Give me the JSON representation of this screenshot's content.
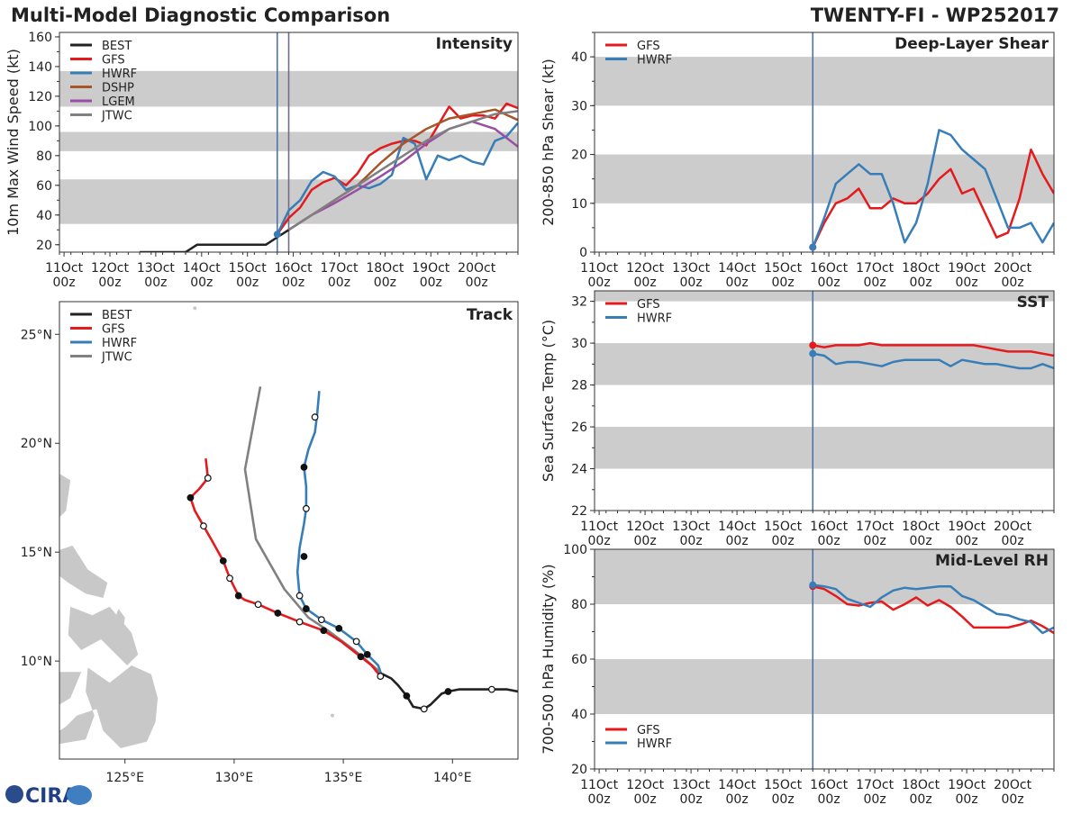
{
  "header": {
    "title_left": "Multi-Model Diagnostic Comparison",
    "title_right": "TWENTY-FI - WP252017"
  },
  "logo": {
    "text": "CIRA"
  },
  "colors": {
    "BEST": "#222222",
    "GFS": "#e41a1c",
    "HWRF": "#377eb8",
    "DSHP": "#a65628",
    "LGEM": "#984ea3",
    "JTWC": "#808080",
    "band": "#cccccc",
    "vline": "#4c72b0"
  },
  "chart_data": [
    {
      "id": "intensity",
      "type": "line",
      "title": "Intensity",
      "ylabel": "10m Max Wind Speed (kt)",
      "xlim": [
        0,
        10
      ],
      "ylim": [
        15,
        163
      ],
      "yticks": [
        20,
        40,
        60,
        80,
        100,
        120,
        140,
        160
      ],
      "xtick_labels": [
        "11Oct\n00z",
        "12Oct\n00z",
        "13Oct\n00z",
        "14Oct\n00z",
        "15Oct\n00z",
        "16Oct\n00z",
        "17Oct\n00z",
        "18Oct\n00z",
        "19Oct\n00z",
        "20Oct\n00z"
      ],
      "bands": [
        [
          34,
          64
        ],
        [
          83,
          96
        ],
        [
          113,
          137
        ]
      ],
      "vlines": [
        4.75,
        5.0
      ],
      "legend": [
        "BEST",
        "GFS",
        "HWRF",
        "DSHP",
        "LGEM",
        "JTWC"
      ],
      "series": [
        {
          "name": "BEST",
          "x": [
            1.75,
            2.0,
            2.25,
            2.5,
            2.75,
            3.0,
            3.25,
            3.5,
            3.75,
            4.0,
            4.25,
            4.5,
            4.75,
            5.0
          ],
          "y": [
            15,
            15,
            15,
            15,
            15,
            20,
            20,
            20,
            20,
            20,
            20,
            20,
            25,
            30
          ]
        },
        {
          "name": "GFS",
          "x": [
            4.75,
            5.0,
            5.25,
            5.5,
            5.75,
            6.0,
            6.25,
            6.5,
            6.75,
            7.0,
            7.25,
            7.5,
            7.75,
            8.0,
            8.25,
            8.5,
            8.75,
            9.0,
            9.25,
            9.5,
            9.75,
            10.0
          ],
          "y": [
            27,
            38,
            45,
            57,
            62,
            65,
            60,
            68,
            80,
            85,
            88,
            90,
            90,
            87,
            100,
            113,
            105,
            107,
            107,
            105,
            115,
            112
          ]
        },
        {
          "name": "HWRF",
          "x": [
            4.75,
            5.0,
            5.25,
            5.5,
            5.75,
            6.0,
            6.25,
            6.5,
            6.75,
            7.0,
            7.25,
            7.5,
            7.75,
            8.0,
            8.25,
            8.5,
            8.75,
            9.0,
            9.25,
            9.5,
            9.75,
            10.0
          ],
          "y": [
            27,
            43,
            50,
            63,
            69,
            66,
            57,
            60,
            58,
            61,
            67,
            92,
            88,
            64,
            80,
            77,
            80,
            76,
            74,
            90,
            93,
            102
          ]
        },
        {
          "name": "DSHP",
          "x": [
            5.0,
            5.5,
            6.0,
            6.5,
            7.0,
            7.5,
            8.0,
            8.5,
            9.0,
            9.5,
            10.0
          ],
          "y": [
            30,
            40,
            50,
            60,
            75,
            88,
            98,
            105,
            108,
            111,
            104
          ]
        },
        {
          "name": "LGEM",
          "x": [
            5.0,
            5.5,
            6.0,
            6.5,
            7.0,
            7.5,
            8.0,
            8.5,
            9.0,
            9.5,
            10.0
          ],
          "y": [
            30,
            40,
            48,
            57,
            66,
            76,
            88,
            98,
            103,
            98,
            86
          ]
        },
        {
          "name": "JTWC",
          "x": [
            5.0,
            5.5,
            6.0,
            6.5,
            7.0,
            7.5,
            8.0,
            8.5,
            9.0,
            9.5,
            10.0
          ],
          "y": [
            30,
            40,
            50,
            60,
            70,
            80,
            90,
            98,
            103,
            108,
            110
          ]
        }
      ]
    },
    {
      "id": "track",
      "type": "line",
      "title": "Track",
      "xlim": [
        122,
        143
      ],
      "ylim": [
        5.5,
        26.5
      ],
      "xtick_labels": [
        "125°E",
        "130°E",
        "135°E",
        "140°E"
      ],
      "xticks": [
        125,
        130,
        135,
        140
      ],
      "ytick_labels": [
        "10°N",
        "15°N",
        "20°N",
        "25°N"
      ],
      "yticks": [
        10,
        15,
        20,
        25
      ],
      "legend": [
        "BEST",
        "GFS",
        "HWRF",
        "JTWC"
      ],
      "series": [
        {
          "name": "BEST",
          "lon": [
            143.0,
            142.5,
            141.8,
            141.0,
            140.3,
            139.8,
            139.5,
            139.3,
            139.0,
            138.7,
            138.2,
            137.9,
            137.5,
            137.2,
            136.8
          ],
          "lat": [
            8.6,
            8.7,
            8.7,
            8.7,
            8.7,
            8.6,
            8.5,
            8.3,
            8.0,
            7.8,
            7.9,
            8.4,
            8.9,
            9.2,
            9.4
          ]
        },
        {
          "name": "GFS",
          "lon": [
            136.7,
            136.3,
            135.8,
            134.9,
            134.1,
            133.0,
            132.0,
            131.1,
            130.5,
            130.2,
            129.8,
            129.5,
            129.0,
            128.6,
            128.2,
            128.0,
            128.4,
            128.8,
            128.7
          ],
          "lat": [
            9.3,
            9.8,
            10.2,
            10.9,
            11.4,
            11.8,
            12.2,
            12.6,
            12.8,
            13.0,
            13.8,
            14.6,
            15.5,
            16.2,
            16.9,
            17.5,
            17.9,
            18.4,
            19.3
          ]
        },
        {
          "name": "HWRF",
          "lon": [
            136.8,
            136.6,
            136.1,
            135.6,
            134.8,
            134.0,
            133.3,
            133.0,
            132.9,
            133.0,
            133.2,
            133.3,
            133.3,
            133.2,
            133.4,
            133.7,
            133.8,
            133.9
          ],
          "lat": [
            9.2,
            9.8,
            10.3,
            10.9,
            11.5,
            11.9,
            12.4,
            13.0,
            14.1,
            15.2,
            16.3,
            17.0,
            18.0,
            18.9,
            19.7,
            20.5,
            21.3,
            22.4
          ]
        },
        {
          "name": "JTWC",
          "lon": [
            136.8,
            135.5,
            134.3,
            133.4,
            132.3,
            131.0,
            130.5,
            131.2
          ],
          "lat": [
            9.4,
            10.5,
            11.4,
            12.0,
            13.3,
            15.6,
            18.8,
            22.6
          ]
        }
      ],
      "markers": [
        {
          "lon": 141.8,
          "lat": 8.7,
          "filled": false
        },
        {
          "lon": 139.8,
          "lat": 8.6,
          "filled": true
        },
        {
          "lon": 138.7,
          "lat": 7.8,
          "filled": false
        },
        {
          "lon": 137.9,
          "lat": 8.4,
          "filled": true
        },
        {
          "lon": 136.7,
          "lat": 9.3,
          "filled": false
        },
        {
          "lon": 135.8,
          "lat": 10.2,
          "filled": true
        },
        {
          "lon": 134.1,
          "lat": 11.4,
          "filled": true
        },
        {
          "lon": 133.0,
          "lat": 11.8,
          "filled": false
        },
        {
          "lon": 132.0,
          "lat": 12.2,
          "filled": true
        },
        {
          "lon": 131.1,
          "lat": 12.6,
          "filled": false
        },
        {
          "lon": 130.2,
          "lat": 13.0,
          "filled": true
        },
        {
          "lon": 129.8,
          "lat": 13.8,
          "filled": false
        },
        {
          "lon": 129.5,
          "lat": 14.6,
          "filled": true
        },
        {
          "lon": 128.6,
          "lat": 16.2,
          "filled": false
        },
        {
          "lon": 128.0,
          "lat": 17.5,
          "filled": true
        },
        {
          "lon": 128.8,
          "lat": 18.4,
          "filled": false
        },
        {
          "lon": 136.1,
          "lat": 10.3,
          "filled": true
        },
        {
          "lon": 135.6,
          "lat": 10.9,
          "filled": false
        },
        {
          "lon": 134.8,
          "lat": 11.5,
          "filled": true
        },
        {
          "lon": 134.0,
          "lat": 11.9,
          "filled": false
        },
        {
          "lon": 133.3,
          "lat": 12.4,
          "filled": true
        },
        {
          "lon": 133.0,
          "lat": 13.0,
          "filled": false
        },
        {
          "lon": 133.2,
          "lat": 14.8,
          "filled": true
        },
        {
          "lon": 133.3,
          "lat": 17.0,
          "filled": false
        },
        {
          "lon": 133.2,
          "lat": 18.9,
          "filled": true
        },
        {
          "lon": 133.7,
          "lat": 21.2,
          "filled": false
        }
      ]
    },
    {
      "id": "shear",
      "type": "line",
      "title": "Deep-Layer Shear",
      "ylabel": "200-850 hPa Shear (kt)",
      "xlim": [
        0,
        10
      ],
      "ylim": [
        0,
        45
      ],
      "yticks": [
        0,
        10,
        20,
        30,
        40
      ],
      "xtick_labels": [
        "11Oct\n00z",
        "12Oct\n00z",
        "13Oct\n00z",
        "14Oct\n00z",
        "15Oct\n00z",
        "16Oct\n00z",
        "17Oct\n00z",
        "18Oct\n00z",
        "19Oct\n00z",
        "20Oct\n00z"
      ],
      "bands": [
        [
          10,
          20
        ],
        [
          30,
          40
        ]
      ],
      "vlines": [
        4.75
      ],
      "legend": [
        "GFS",
        "HWRF"
      ],
      "series": [
        {
          "name": "GFS",
          "x": [
            4.75,
            5.0,
            5.25,
            5.5,
            5.75,
            6.0,
            6.25,
            6.5,
            6.75,
            7.0,
            7.25,
            7.5,
            7.75,
            8.0,
            8.25,
            8.5,
            8.75,
            9.0,
            9.25,
            9.5,
            9.75,
            10.0
          ],
          "y": [
            1,
            6,
            10,
            11,
            13,
            9,
            9,
            11,
            10,
            10,
            12,
            15,
            17,
            12,
            13,
            8,
            3,
            4,
            11,
            21,
            16,
            12
          ]
        },
        {
          "name": "HWRF",
          "x": [
            4.75,
            5.0,
            5.25,
            5.5,
            5.75,
            6.0,
            6.25,
            6.5,
            6.75,
            7.0,
            7.25,
            7.5,
            7.75,
            8.0,
            8.25,
            8.5,
            8.75,
            9.0,
            9.25,
            9.5,
            9.75,
            10.0
          ],
          "y": [
            1,
            7,
            14,
            16,
            18,
            16,
            16,
            10,
            2,
            6,
            14,
            25,
            24,
            21,
            19,
            17,
            11,
            5,
            5,
            6,
            2,
            6
          ]
        }
      ]
    },
    {
      "id": "sst",
      "type": "line",
      "title": "SST",
      "ylabel": "Sea Surface Temp (°C)",
      "xlim": [
        0,
        10
      ],
      "ylim": [
        22,
        32.5
      ],
      "yticks": [
        22,
        24,
        26,
        28,
        30,
        32
      ],
      "xtick_labels": [
        "11Oct\n00z",
        "12Oct\n00z",
        "13Oct\n00z",
        "14Oct\n00z",
        "15Oct\n00z",
        "16Oct\n00z",
        "17Oct\n00z",
        "18Oct\n00z",
        "19Oct\n00z",
        "20Oct\n00z"
      ],
      "bands": [
        [
          24,
          26
        ],
        [
          28,
          30
        ],
        [
          32,
          34
        ]
      ],
      "vlines": [
        4.75
      ],
      "legend": [
        "GFS",
        "HWRF"
      ],
      "series": [
        {
          "name": "GFS",
          "x": [
            4.75,
            5.0,
            5.25,
            5.5,
            5.75,
            6.0,
            6.25,
            6.5,
            6.75,
            7.0,
            7.25,
            7.5,
            7.75,
            8.0,
            8.25,
            8.5,
            8.75,
            9.0,
            9.25,
            9.5,
            9.75,
            10.0
          ],
          "y": [
            29.9,
            29.8,
            29.9,
            29.9,
            29.9,
            30.0,
            29.9,
            29.9,
            29.9,
            29.9,
            29.9,
            29.9,
            29.9,
            29.9,
            29.9,
            29.8,
            29.7,
            29.6,
            29.6,
            29.6,
            29.5,
            29.4
          ]
        },
        {
          "name": "HWRF",
          "x": [
            4.75,
            5.0,
            5.25,
            5.5,
            5.75,
            6.0,
            6.25,
            6.5,
            6.75,
            7.0,
            7.25,
            7.5,
            7.75,
            8.0,
            8.25,
            8.5,
            8.75,
            9.0,
            9.25,
            9.5,
            9.75,
            10.0
          ],
          "y": [
            29.5,
            29.4,
            29.0,
            29.1,
            29.1,
            29.0,
            28.9,
            29.1,
            29.2,
            29.2,
            29.2,
            29.2,
            28.9,
            29.2,
            29.1,
            29.0,
            29.0,
            28.9,
            28.8,
            28.8,
            29.0,
            28.8
          ]
        }
      ]
    },
    {
      "id": "rh",
      "type": "line",
      "title": "Mid-Level RH",
      "ylabel": "700-500 hPa Humidity (%)",
      "xlim": [
        0,
        10
      ],
      "ylim": [
        20,
        100
      ],
      "yticks": [
        20,
        40,
        60,
        80,
        100
      ],
      "xtick_labels": [
        "11Oct\n00z",
        "12Oct\n00z",
        "13Oct\n00z",
        "14Oct\n00z",
        "15Oct\n00z",
        "16Oct\n00z",
        "17Oct\n00z",
        "18Oct\n00z",
        "19Oct\n00z",
        "20Oct\n00z"
      ],
      "bands": [
        [
          40,
          60
        ],
        [
          80,
          100
        ]
      ],
      "vlines": [
        4.75
      ],
      "legend": [
        "GFS",
        "HWRF"
      ],
      "legend_position": "lower-left",
      "series": [
        {
          "name": "GFS",
          "x": [
            4.75,
            5.0,
            5.25,
            5.5,
            5.75,
            6.0,
            6.25,
            6.5,
            6.75,
            7.0,
            7.25,
            7.5,
            7.75,
            8.0,
            8.25,
            8.5,
            8.75,
            9.0,
            9.25,
            9.5,
            9.75,
            10.0
          ],
          "y": [
            86.5,
            85.5,
            83,
            80,
            79.5,
            80.5,
            81,
            78,
            80,
            82.5,
            79.5,
            81.5,
            79,
            75.5,
            71.5,
            71.5,
            71.5,
            71.5,
            72.5,
            74,
            72,
            69.5
          ]
        },
        {
          "name": "HWRF",
          "x": [
            4.75,
            5.0,
            5.25,
            5.5,
            5.75,
            6.0,
            6.25,
            6.5,
            6.75,
            7.0,
            7.25,
            7.5,
            7.75,
            8.0,
            8.25,
            8.5,
            8.75,
            9.0,
            9.25,
            9.5,
            9.75,
            10.0
          ],
          "y": [
            87,
            86.5,
            85.5,
            82,
            80.5,
            79,
            82.5,
            85,
            86,
            85.5,
            86,
            86.5,
            86.5,
            83,
            81.5,
            79,
            76.5,
            76,
            74.5,
            73.5,
            69.5,
            71.5
          ]
        }
      ]
    }
  ]
}
